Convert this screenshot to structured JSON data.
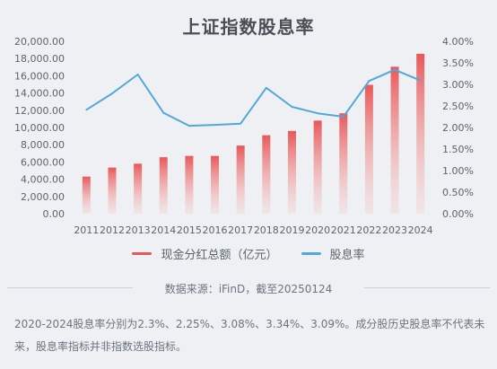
{
  "chart_data": {
    "type": "bar+line",
    "title": "上证指数股息率",
    "categories": [
      "2011",
      "2012",
      "2013",
      "2014",
      "2015",
      "2016",
      "2017",
      "2018",
      "2019",
      "2020",
      "2021",
      "2022",
      "2023",
      "2024"
    ],
    "y_left": {
      "min": 0,
      "max": 20000,
      "ticks": [
        "0.00",
        "2,000.00",
        "4,000.00",
        "6,000.00",
        "8,000.00",
        "10,000.00",
        "12,000.00",
        "14,000.00",
        "16,000.00",
        "18,000.00",
        "20,000.00"
      ]
    },
    "y_right": {
      "min": 0,
      "max": 0.04,
      "ticks": [
        "0.00%",
        "0.50%",
        "1.00%",
        "1.50%",
        "2.00%",
        "2.50%",
        "3.00%",
        "3.50%",
        "4.00%"
      ]
    },
    "series": [
      {
        "name": "现金分红总额（亿元）",
        "type": "bar",
        "axis": "left",
        "color": "#e8585a",
        "values": [
          4300,
          5350,
          5800,
          6550,
          6700,
          6700,
          7900,
          9100,
          9600,
          10800,
          11650,
          14950,
          17050,
          18550
        ]
      },
      {
        "name": "股息率",
        "type": "line",
        "axis": "right",
        "color": "#52a8d8",
        "values": [
          0.0241,
          0.0279,
          0.0323,
          0.0234,
          0.0204,
          0.0206,
          0.0209,
          0.0292,
          0.0248,
          0.0233,
          0.0225,
          0.0308,
          0.0334,
          0.0309
        ]
      }
    ],
    "grid": false,
    "legend": "bottom"
  },
  "source_text": "数据来源：iFinD，截至20250124",
  "note_text": "2020-2024股息率分别为2.3%、2.25%、3.08%、3.34%、3.09%。成分股历史股息率不代表未来，股息率指标并非指数选股指标。"
}
